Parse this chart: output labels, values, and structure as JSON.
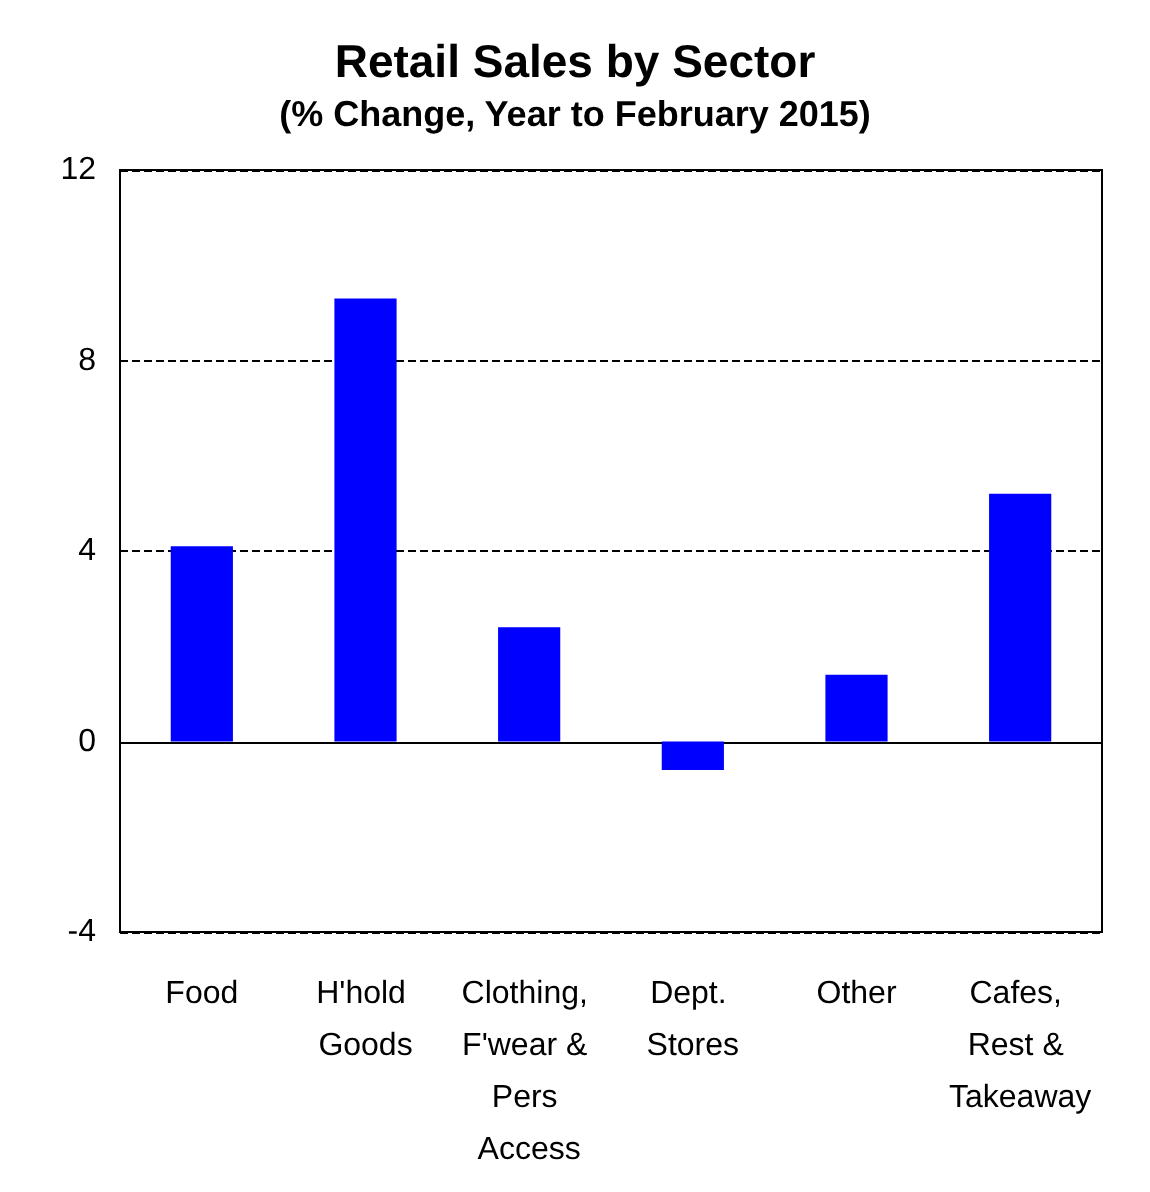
{
  "chart_data": {
    "type": "bar",
    "title": "Retail Sales by Sector",
    "subtitle": "(% Change, Year to February 2015)",
    "categories": [
      "Food",
      "H'hold Goods",
      "Clothing, F'wear & Pers Access",
      "Dept. Stores",
      "Other",
      "Cafes, Rest & Takeaway"
    ],
    "values": [
      4.1,
      9.3,
      2.4,
      -0.6,
      1.4,
      5.2
    ],
    "color": "#0000ff",
    "ylim": [
      -4,
      12
    ],
    "yticks": [
      -4,
      0,
      4,
      8,
      12
    ],
    "grid": "y",
    "line_style": "dashed"
  }
}
